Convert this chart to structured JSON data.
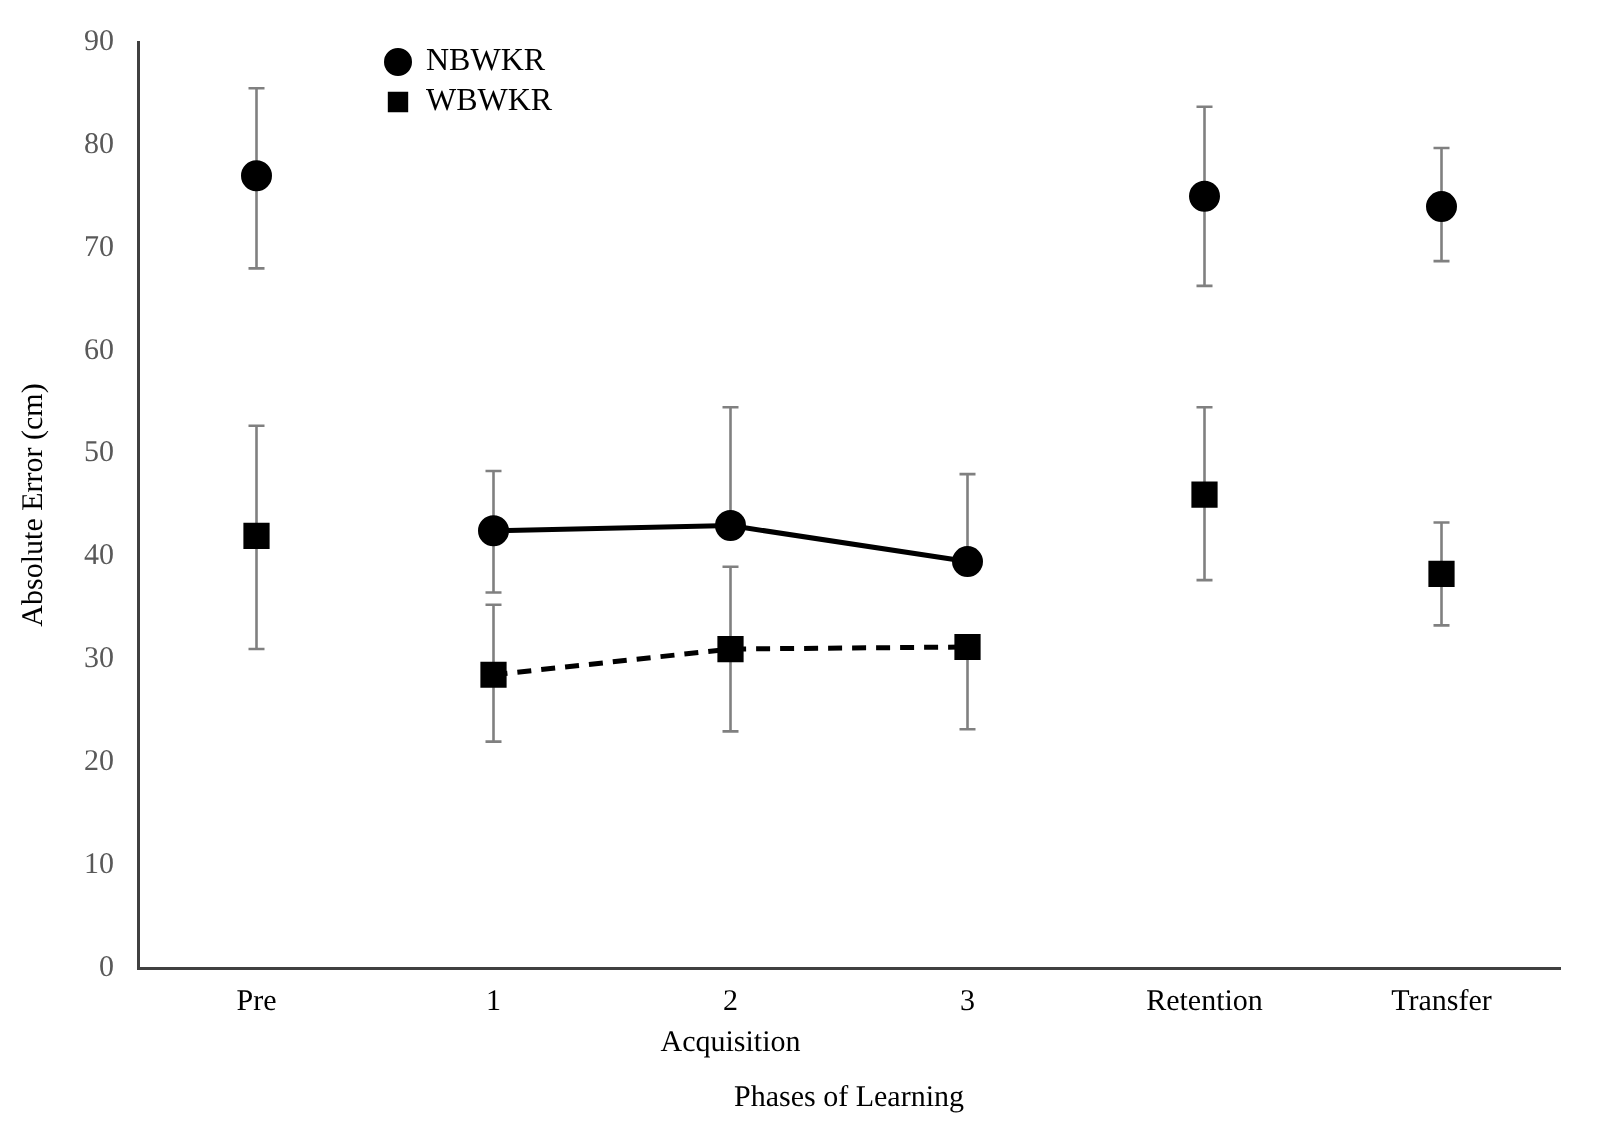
{
  "chart_data": {
    "type": "line",
    "xlabel": "Phases of Learning",
    "ylabel": "Absolute Error (cm)",
    "categories": [
      "Pre",
      "1",
      "2",
      "3",
      "Retention",
      "Transfer"
    ],
    "ylim": [
      0,
      90
    ],
    "yticks": [
      0,
      10,
      20,
      30,
      40,
      50,
      60,
      70,
      80,
      90
    ],
    "grid": false,
    "legend": "top left",
    "annotations": [
      "Acquisition"
    ],
    "series": [
      {
        "name": "NBWKR",
        "type": "scatter",
        "marker": "circle",
        "color": "#000000",
        "values": [
          77,
          null,
          null,
          null,
          75,
          74
        ],
        "errors": [
          [
            68,
            85.5
          ],
          null,
          null,
          null,
          [
            66.3,
            83.7
          ],
          [
            68.7,
            79.7
          ]
        ]
      },
      {
        "type": "line",
        "marker": "circle",
        "line_style": "solid",
        "color": "#000000",
        "values": [
          null,
          42.5,
          43,
          39.5,
          null,
          null
        ],
        "errors": [
          null,
          [
            36.5,
            48.3
          ],
          [
            43,
            54.5
          ],
          [
            39.5,
            48
          ],
          null,
          null
        ]
      },
      {
        "name": "WBWKR",
        "type": "scatter",
        "marker": "square",
        "color": "#000000",
        "values": [
          42,
          null,
          null,
          null,
          46,
          38.3
        ],
        "errors": [
          [
            31,
            52.7
          ],
          null,
          null,
          null,
          [
            37.7,
            54.5
          ],
          [
            33.3,
            43.3
          ]
        ]
      },
      {
        "type": "line",
        "marker": "square",
        "line_style": "dashed",
        "color": "#000000",
        "values": [
          null,
          28.5,
          31,
          31.2,
          null,
          null
        ],
        "errors": [
          null,
          [
            22,
            35.3
          ],
          [
            23,
            39
          ],
          [
            23.2,
            31.2
          ],
          null,
          null
        ]
      }
    ]
  }
}
